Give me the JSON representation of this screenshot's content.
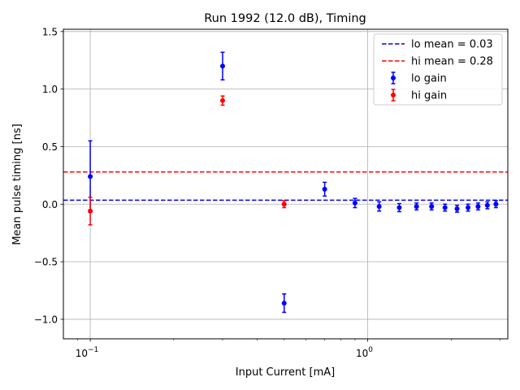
{
  "chart_data": {
    "type": "scatter",
    "title": "Run 1992 (12.0 dB), Timing",
    "xlabel": "Input Current [mA]",
    "ylabel": "Mean pulse timing  [ns]",
    "x_scale": "log",
    "xlim": [
      0.08,
      3.2
    ],
    "ylim": [
      -1.17,
      1.52
    ],
    "grid": true,
    "legend_position": "top-right",
    "x_major_ticks": [
      {
        "value": 0.1,
        "label": "10",
        "exp": "−1"
      },
      {
        "value": 1.0,
        "label": "10",
        "exp": "0"
      }
    ],
    "y_ticks": [
      {
        "value": 1.5,
        "label": "1.5"
      },
      {
        "value": 1.0,
        "label": "1.0"
      },
      {
        "value": 0.5,
        "label": "0.5"
      },
      {
        "value": 0.0,
        "label": "0.0"
      },
      {
        "value": -0.5,
        "label": "−0.5"
      },
      {
        "value": -1.0,
        "label": "−1.0"
      }
    ],
    "series": [
      {
        "name": "lo gain",
        "color": "#0000ff",
        "points": [
          {
            "x": 0.1,
            "y": 0.24,
            "err": 0.31
          },
          {
            "x": 0.3,
            "y": 1.2,
            "err": 0.12
          },
          {
            "x": 0.5,
            "y": -0.86,
            "err": 0.08
          },
          {
            "x": 0.7,
            "y": 0.13,
            "err": 0.06
          },
          {
            "x": 0.9,
            "y": 0.01,
            "err": 0.04
          },
          {
            "x": 1.1,
            "y": -0.02,
            "err": 0.04
          },
          {
            "x": 1.3,
            "y": -0.03,
            "err": 0.035
          },
          {
            "x": 1.5,
            "y": -0.02,
            "err": 0.03
          },
          {
            "x": 1.7,
            "y": -0.02,
            "err": 0.03
          },
          {
            "x": 1.9,
            "y": -0.03,
            "err": 0.03
          },
          {
            "x": 2.1,
            "y": -0.04,
            "err": 0.03
          },
          {
            "x": 2.3,
            "y": -0.03,
            "err": 0.03
          },
          {
            "x": 2.5,
            "y": -0.02,
            "err": 0.03
          },
          {
            "x": 2.7,
            "y": -0.01,
            "err": 0.03
          },
          {
            "x": 2.9,
            "y": 0.0,
            "err": 0.03
          }
        ]
      },
      {
        "name": "hi gain",
        "color": "#ff0000",
        "points": [
          {
            "x": 0.1,
            "y": -0.06,
            "err": 0.12
          },
          {
            "x": 0.3,
            "y": 0.9,
            "err": 0.04
          },
          {
            "x": 0.5,
            "y": 0.0,
            "err": 0.03
          }
        ]
      }
    ],
    "reference_lines": [
      {
        "label": "lo mean = 0.03",
        "y": 0.035,
        "color": "#0000ff",
        "style": "dashed"
      },
      {
        "label": "hi mean = 0.28",
        "y": 0.28,
        "color": "#ff0000",
        "style": "dashed"
      }
    ]
  }
}
